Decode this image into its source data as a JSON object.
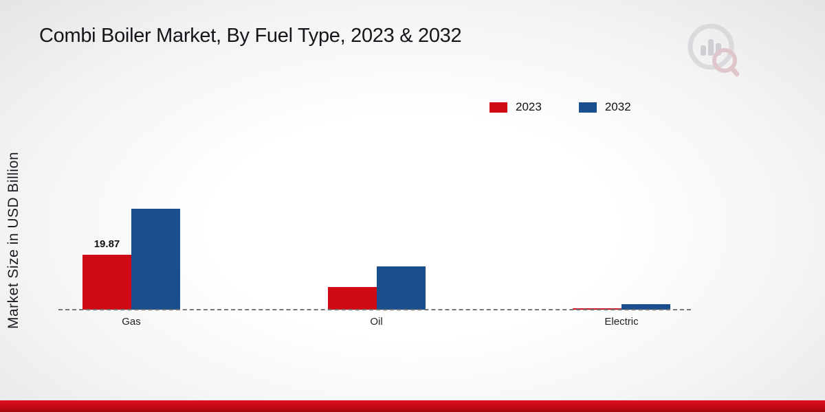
{
  "title": "Combi Boiler Market, By Fuel Type, 2023 & 2032",
  "ylabel": "Market Size in USD Billion",
  "legend": {
    "items": [
      {
        "label": "2023",
        "color": "#cf0a14"
      },
      {
        "label": "2032",
        "color": "#1b4e8e"
      }
    ]
  },
  "icons": {
    "watermark_logo": "bar-chart-magnifier-watermark"
  },
  "chart_data": {
    "type": "bar",
    "categories": [
      "Gas",
      "Oil",
      "Electric"
    ],
    "series": [
      {
        "name": "2023",
        "color": "#cf0a14",
        "values": [
          19.87,
          8.2,
          0.5
        ]
      },
      {
        "name": "2032",
        "color": "#1b4e8e",
        "values": [
          36.5,
          15.6,
          2.0
        ]
      }
    ],
    "title": "Combi Boiler Market, By Fuel Type, 2023 & 2032",
    "xlabel": "",
    "ylabel": "Market Size in USD Billion",
    "ylim": [
      0,
      40
    ],
    "grid": false,
    "baseline_style": "dashed",
    "legend_position": "top-right",
    "value_labels": [
      {
        "category": "Gas",
        "series": "2023",
        "text": "19.87"
      }
    ]
  }
}
